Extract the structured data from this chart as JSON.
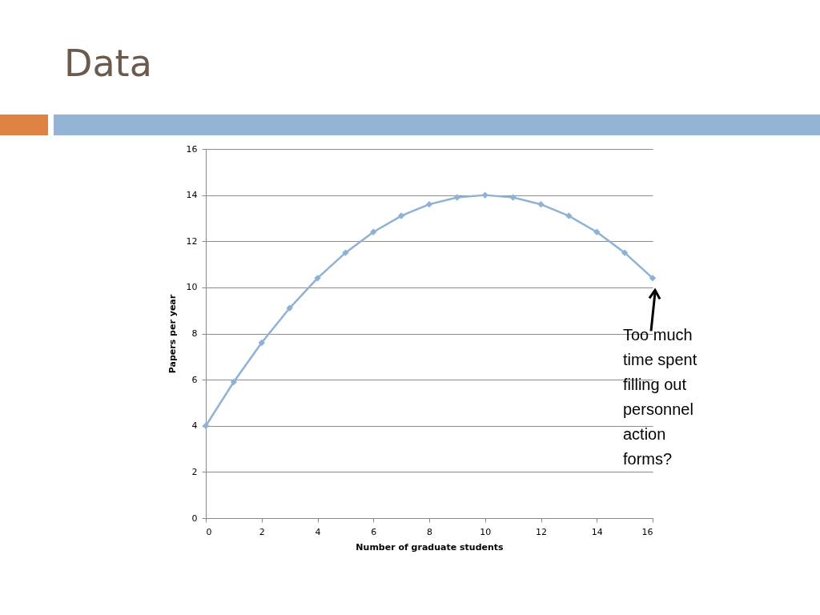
{
  "chart_data": {
    "type": "line",
    "title": "Data",
    "xlabel": "Number of graduate students",
    "ylabel": "Papers per year",
    "x": [
      0,
      1,
      2,
      3,
      4,
      5,
      6,
      7,
      8,
      9,
      10,
      11,
      12,
      13,
      14,
      15,
      16
    ],
    "series": [
      {
        "color": "#8eb1d6",
        "values": [
          4,
          5.9,
          7.6,
          9.1,
          10.4,
          11.5,
          12.4,
          13.1,
          13.6,
          13.9,
          14,
          13.9,
          13.6,
          13.1,
          12.4,
          11.5,
          10.4
        ]
      }
    ],
    "xlim": [
      0,
      16
    ],
    "xticks": [
      0,
      2,
      4,
      6,
      8,
      10,
      12,
      14,
      16
    ],
    "ylim": [
      0,
      16
    ],
    "yticks": [
      0,
      2,
      4,
      6,
      8,
      10,
      12,
      14,
      16
    ],
    "grid": "y",
    "marker": "diamond",
    "line_style": "solid",
    "annotations": [
      {
        "text": "Too much time spent filling out personnel action forms?",
        "x": 16,
        "y": 10.4
      }
    ]
  }
}
